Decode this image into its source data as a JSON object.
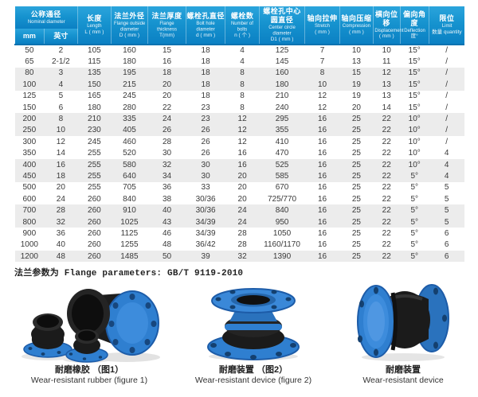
{
  "table": {
    "columns": [
      {
        "zh": "公称通径",
        "en": "Nominal diameter",
        "unit": "",
        "sub": [
          "mm",
          "英寸"
        ]
      },
      {
        "zh": "长度",
        "en": "Length",
        "unit": "L ( mm )"
      },
      {
        "zh": "法兰外径",
        "en": "Flange outside diameter",
        "unit": "D ( mm )"
      },
      {
        "zh": "法兰厚度",
        "en": "Flange thickness",
        "unit": "T(mm)"
      },
      {
        "zh": "螺栓孔直径",
        "en": "Bolt hole diameter",
        "unit": "d ( mm )"
      },
      {
        "zh": "螺栓数",
        "en": "Number of bolts",
        "unit": "n ( 个 )"
      },
      {
        "zh": "螺栓孔中心圆直径",
        "en": "Center circle diameter",
        "unit": "D1 ( mm )"
      },
      {
        "zh": "轴向拉伸",
        "en": "Stretch",
        "unit": "( mm )"
      },
      {
        "zh": "轴向压缩",
        "en": "Compression",
        "unit": "( mm )"
      },
      {
        "zh": "横向位移",
        "en": "Displacement",
        "unit": "( mm )"
      },
      {
        "zh": "偏向角度",
        "en": "Deflection",
        "unit": "度°"
      },
      {
        "zh": "限位",
        "en": "Limit",
        "unit": "数量 quantity"
      }
    ],
    "rows": [
      [
        "50",
        "2",
        "105",
        "160",
        "15",
        "18",
        "4",
        "125",
        "7",
        "10",
        "10",
        "15°",
        "/"
      ],
      [
        "65",
        "2-1/2",
        "115",
        "180",
        "16",
        "18",
        "4",
        "145",
        "7",
        "13",
        "11",
        "15°",
        "/"
      ],
      [
        "80",
        "3",
        "135",
        "195",
        "18",
        "18",
        "8",
        "160",
        "8",
        "15",
        "12",
        "15°",
        "/"
      ],
      [
        "100",
        "4",
        "150",
        "215",
        "20",
        "18",
        "8",
        "180",
        "10",
        "19",
        "13",
        "15°",
        "/"
      ],
      [
        "125",
        "5",
        "165",
        "245",
        "20",
        "18",
        "8",
        "210",
        "12",
        "19",
        "13",
        "15°",
        "/"
      ],
      [
        "150",
        "6",
        "180",
        "280",
        "22",
        "23",
        "8",
        "240",
        "12",
        "20",
        "14",
        "15°",
        "/"
      ],
      [
        "200",
        "8",
        "210",
        "335",
        "24",
        "23",
        "12",
        "295",
        "16",
        "25",
        "22",
        "10°",
        "/"
      ],
      [
        "250",
        "10",
        "230",
        "405",
        "26",
        "26",
        "12",
        "355",
        "16",
        "25",
        "22",
        "10°",
        "/"
      ],
      [
        "300",
        "12",
        "245",
        "460",
        "28",
        "26",
        "12",
        "410",
        "16",
        "25",
        "22",
        "10°",
        "/"
      ],
      [
        "350",
        "14",
        "255",
        "520",
        "30",
        "26",
        "16",
        "470",
        "16",
        "25",
        "22",
        "10°",
        "4"
      ],
      [
        "400",
        "16",
        "255",
        "580",
        "32",
        "30",
        "16",
        "525",
        "16",
        "25",
        "22",
        "10°",
        "4"
      ],
      [
        "450",
        "18",
        "255",
        "640",
        "34",
        "30",
        "20",
        "585",
        "16",
        "25",
        "22",
        "5°",
        "4"
      ],
      [
        "500",
        "20",
        "255",
        "705",
        "36",
        "33",
        "20",
        "670",
        "16",
        "25",
        "22",
        "5°",
        "5"
      ],
      [
        "600",
        "24",
        "260",
        "840",
        "38",
        "30/36",
        "20",
        "725/770",
        "16",
        "25",
        "22",
        "5°",
        "5"
      ],
      [
        "700",
        "28",
        "260",
        "910",
        "40",
        "30/36",
        "24",
        "840",
        "16",
        "25",
        "22",
        "5°",
        "5"
      ],
      [
        "800",
        "32",
        "260",
        "1025",
        "43",
        "34/39",
        "24",
        "950",
        "16",
        "25",
        "22",
        "5°",
        "5"
      ],
      [
        "900",
        "36",
        "260",
        "1125",
        "46",
        "34/39",
        "28",
        "1050",
        "16",
        "25",
        "22",
        "5°",
        "6"
      ],
      [
        "1000",
        "40",
        "260",
        "1255",
        "48",
        "36/42",
        "28",
        "1160/1170",
        "16",
        "25",
        "22",
        "5°",
        "6"
      ],
      [
        "1200",
        "48",
        "260",
        "1485",
        "50",
        "39",
        "32",
        "1390",
        "16",
        "25",
        "22",
        "5°",
        "6"
      ]
    ]
  },
  "note": "法兰参数为 Flange parameters: GB/T 9119-2010",
  "figures": [
    {
      "caption_zh": "耐磨橡胶 （图1）",
      "caption_en": "Wear-resistant rubber (figure 1)"
    },
    {
      "caption_zh": "耐磨装置 （图2）",
      "caption_en": "Wear-resistant device (figure 2)"
    },
    {
      "caption_zh": "耐磨装置",
      "caption_en": "Wear-resistant device"
    }
  ],
  "colors": {
    "header_blue_top": "#2ba4dc",
    "header_blue_bottom": "#0b80c3",
    "row_alt_gray": "#ececec",
    "flange_blue": "#2f7fd0",
    "rubber_black": "#1a1a1a"
  }
}
